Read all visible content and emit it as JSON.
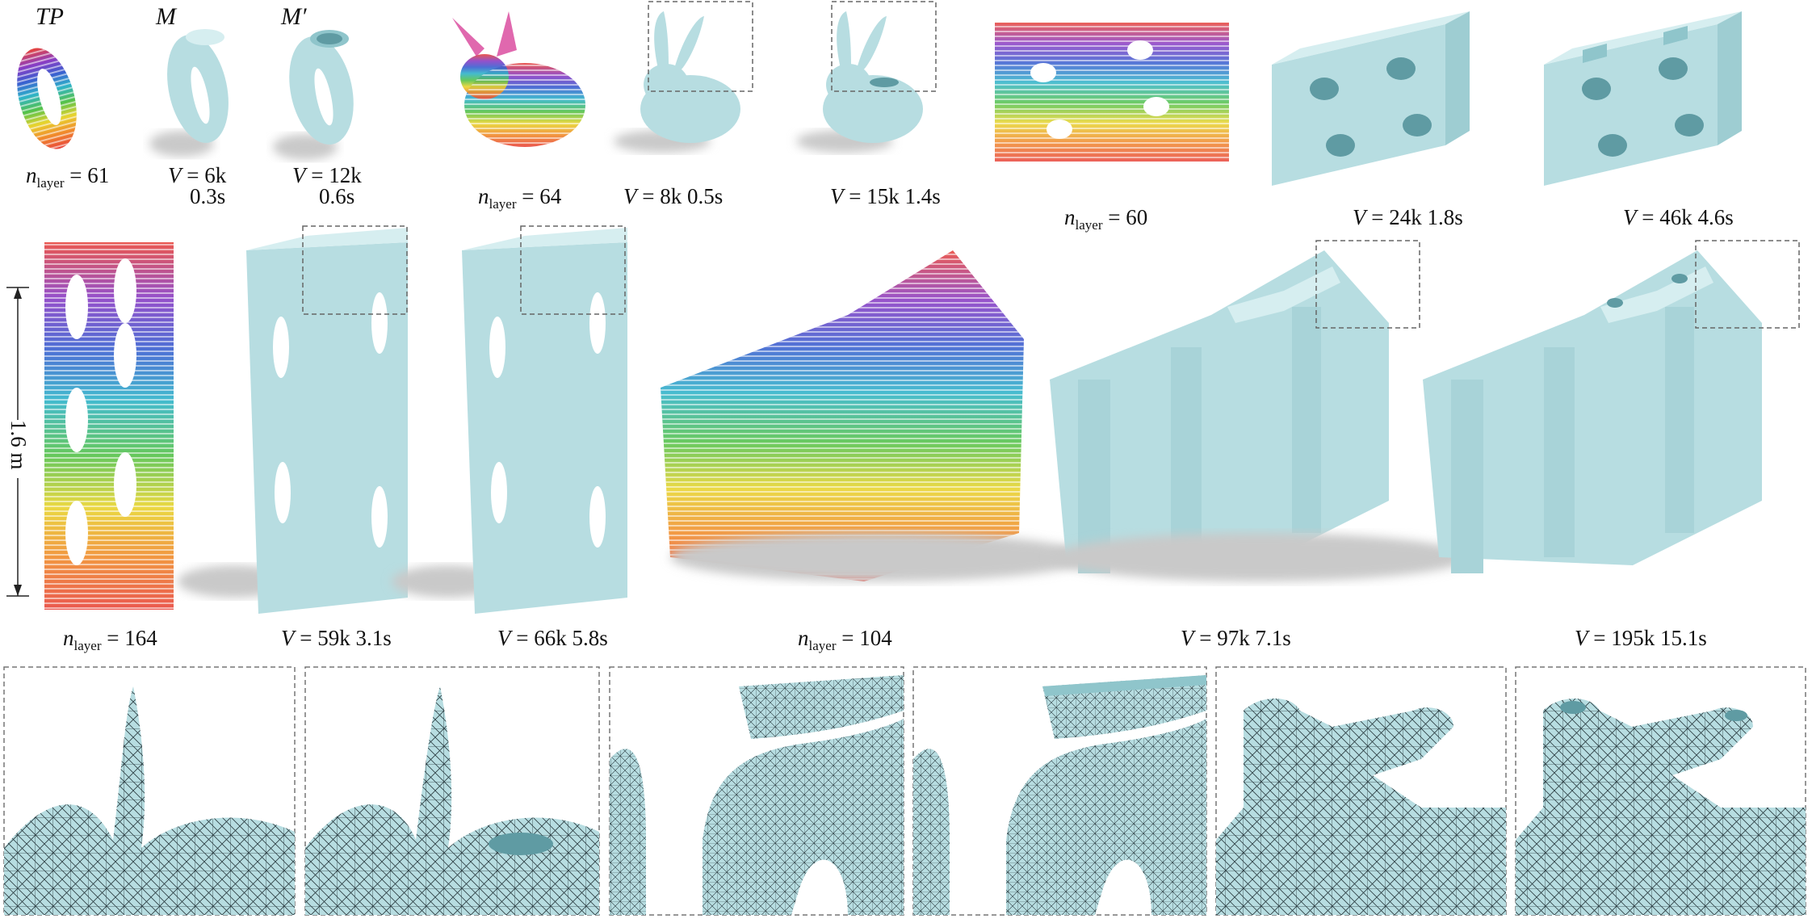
{
  "column_headers": {
    "tp": "TP",
    "m": "M",
    "m_prime": "M′"
  },
  "labels": {
    "l1": {
      "var": "n",
      "sub": "layer",
      "text": "= 61"
    },
    "l2": {
      "var": "V",
      "text": "= 6k"
    },
    "l2b": "0.3s",
    "l3": {
      "var": "V",
      "text": "= 12k"
    },
    "l3b": "0.6s",
    "l4": {
      "var": "n",
      "sub": "layer",
      "text": "= 64"
    },
    "l5": {
      "var": "V",
      "text": "= 8k  0.5s"
    },
    "l6": {
      "var": "V",
      "text": "= 15k  1.4s"
    },
    "l7": {
      "var": "n",
      "sub": "layer",
      "text": "= 60"
    },
    "l8": {
      "var": "V",
      "text": "= 24k  1.8s"
    },
    "l9": {
      "var": "V",
      "text": "= 46k  4.6s"
    },
    "l10": {
      "var": "n",
      "sub": "layer",
      "text": "= 164"
    },
    "l11": {
      "var": "V",
      "text": "= 59k  3.1s"
    },
    "l12": {
      "var": "V",
      "text": "= 66k  5.8s"
    },
    "l13": {
      "var": "n",
      "sub": "layer",
      "text": "= 104"
    },
    "l14": {
      "var": "V",
      "text": "= 97k  7.1s"
    },
    "l15": {
      "var": "V",
      "text": "= 195k  15.1s"
    }
  },
  "dimension": "1.6 m",
  "colors": {
    "mesh_fill": "#b7dde1",
    "mesh_edge": "#223238",
    "shadow": "#c9c9c9",
    "rainbow": [
      "#e8453c",
      "#f08a2c",
      "#e8d42e",
      "#55c24a",
      "#2fb3c9",
      "#3a5fd0",
      "#8a3dc4",
      "#d8429a"
    ]
  }
}
